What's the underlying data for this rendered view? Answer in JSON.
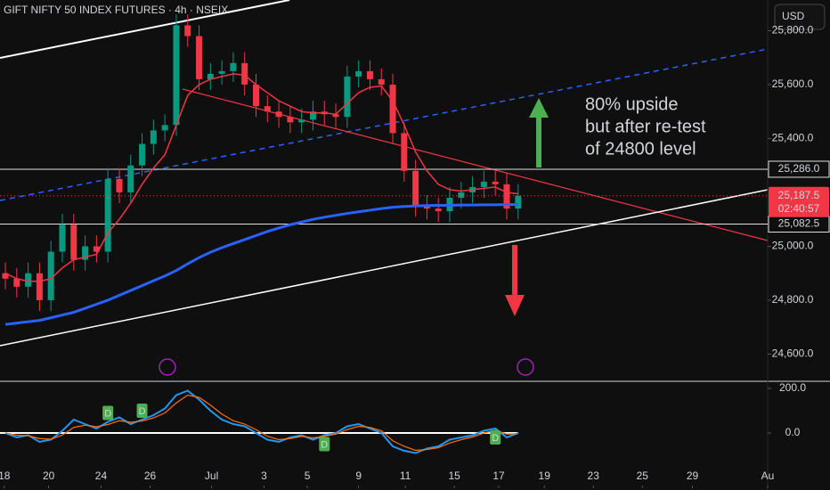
{
  "chart_data": {
    "type": "candlestick",
    "title": "GIFT NIFTY 50 INDEX FUTURES · 4h · NSEIX",
    "currency": "USD",
    "open": [
      24900,
      24880,
      24850,
      24900,
      24800,
      24980,
      25080,
      24950,
      25000,
      24980,
      25250,
      25200,
      25300,
      25380,
      25430,
      25450,
      25820,
      25780,
      25620,
      25640,
      25650,
      25680,
      25600,
      25520,
      25500,
      25480,
      25460,
      25470,
      25500,
      25490,
      25480,
      25630,
      25650,
      25620,
      25600,
      25420,
      25280,
      25150,
      25140,
      25130,
      25180,
      25200,
      25220,
      25240,
      25230,
      25140
    ],
    "high": [
      24940,
      24920,
      24940,
      24940,
      25020,
      25120,
      25120,
      25040,
      25040,
      25290,
      25290,
      25340,
      25420,
      25470,
      25490,
      25860,
      25860,
      25820,
      25680,
      25690,
      25720,
      25720,
      25640,
      25560,
      25540,
      25520,
      25510,
      25540,
      25540,
      25530,
      25670,
      25690,
      25690,
      25660,
      25640,
      25460,
      25320,
      25190,
      25180,
      25220,
      25240,
      25260,
      25280,
      25280,
      25270,
      25230
    ],
    "low": [
      24840,
      24810,
      24810,
      24760,
      24760,
      24940,
      24910,
      24910,
      24940,
      24940,
      25160,
      25160,
      25260,
      25340,
      25390,
      25410,
      25740,
      25580,
      25580,
      25600,
      25610,
      25560,
      25480,
      25460,
      25440,
      25420,
      25420,
      25430,
      25450,
      25440,
      25440,
      25590,
      25580,
      25560,
      25380,
      25240,
      25110,
      25100,
      25090,
      25090,
      25140,
      25160,
      25180,
      25190,
      25100,
      25100
    ],
    "close": [
      24880,
      24850,
      24900,
      24800,
      24980,
      25080,
      24950,
      25000,
      24980,
      25250,
      25200,
      25300,
      25380,
      25430,
      25450,
      25820,
      25780,
      25620,
      25640,
      25650,
      25680,
      25600,
      25520,
      25500,
      25480,
      25460,
      25470,
      25500,
      25490,
      25480,
      25630,
      25650,
      25620,
      25600,
      25420,
      25280,
      25150,
      25140,
      25130,
      25180,
      25200,
      25220,
      25240,
      25230,
      25140,
      25187.5
    ],
    "up_color": "#089981",
    "down_color": "#f23645",
    "series": [
      {
        "color": "#f23645",
        "values": [
          24900,
          24880,
          24870,
          24870,
          24880,
          24920,
          24950,
          24960,
          24970,
          25050,
          25100,
          25160,
          25230,
          25290,
          25340,
          25450,
          25560,
          25600,
          25620,
          25630,
          25640,
          25635,
          25600,
          25570,
          25540,
          25520,
          25500,
          25495,
          25495,
          25490,
          25530,
          25570,
          25590,
          25595,
          25540,
          25450,
          25350,
          25280,
          25230,
          25210,
          25205,
          25210,
          25215,
          25220,
          25200,
          25195
        ]
      },
      {
        "color": "#2962ff",
        "values": [
          24710,
          24715,
          24720,
          24725,
          24735,
          24745,
          24755,
          24770,
          24785,
          24800,
          24818,
          24836,
          24854,
          24872,
          24890,
          24910,
          24935,
          24958,
          24978,
          24995,
          25010,
          25025,
          25040,
          25055,
          25068,
          25080,
          25090,
          25100,
          25108,
          25115,
          25122,
          25128,
          25134,
          25140,
          25145,
          25148,
          25150,
          25151,
          25152,
          25152,
          25153,
          25153,
          25154,
          25154,
          25155,
          25155
        ]
      }
    ],
    "xlim": [
      -0.47,
      66.9
    ],
    "xticks": [
      {
        "value": -0.1,
        "label": "18"
      },
      {
        "value": 3.8,
        "label": "20"
      },
      {
        "value": 8.4,
        "label": "24"
      },
      {
        "value": 12.7,
        "label": "26"
      },
      {
        "value": 18.1,
        "label": "Jul"
      },
      {
        "value": 22.7,
        "label": "3"
      },
      {
        "value": 26.5,
        "label": "5"
      },
      {
        "value": 31,
        "label": "9"
      },
      {
        "value": 35.1,
        "label": "11"
      },
      {
        "value": 39.4,
        "label": "15"
      },
      {
        "value": 43.3,
        "label": "17"
      },
      {
        "value": 47.3,
        "label": "19"
      },
      {
        "value": 51.6,
        "label": "23"
      },
      {
        "value": 55.9,
        "label": "25"
      },
      {
        "value": 60.3,
        "label": "29"
      },
      {
        "value": 66.9,
        "label": "Au"
      }
    ],
    "ylim": [
      24499,
      25914
    ],
    "yticks": [
      {
        "value": 24600,
        "label": "24,600.0"
      },
      {
        "value": 24800,
        "label": "24,800.0"
      },
      {
        "value": 25000,
        "label": "25,000.0"
      },
      {
        "value": 25400,
        "label": "25,400.0"
      },
      {
        "value": 25600,
        "label": "25,600.0"
      },
      {
        "value": 25800,
        "label": "25,800.0"
      }
    ],
    "levels": [
      {
        "value": 25286,
        "label": "25,286.0"
      },
      {
        "value": 25082.5,
        "label": "25,082.5"
      }
    ],
    "last_price": {
      "value": 25187.5,
      "label": "25,187.5"
    },
    "countdown": "02:40:57",
    "annotation": [
      "80% upside",
      "but after re-test",
      "of 24800 level"
    ],
    "oscillator": {
      "ylim": [
        -156,
        224
      ],
      "yticks": [
        {
          "value": 0,
          "label": "0.0"
        },
        {
          "value": 200,
          "label": "200.0"
        }
      ],
      "series": [
        {
          "color": "#2196f3",
          "values": [
            0,
            -20,
            -10,
            -40,
            -30,
            10,
            60,
            40,
            20,
            50,
            70,
            40,
            60,
            80,
            110,
            170,
            190,
            150,
            100,
            60,
            40,
            30,
            0,
            -30,
            -40,
            -20,
            -10,
            -30,
            -10,
            0,
            30,
            40,
            20,
            0,
            -60,
            -80,
            -90,
            -70,
            -60,
            -30,
            -20,
            -10,
            10,
            20,
            -20,
            0
          ]
        },
        {
          "color": "#ff6d00",
          "values": [
            0,
            -10,
            -12,
            -25,
            -28,
            -10,
            25,
            35,
            28,
            38,
            55,
            48,
            54,
            68,
            90,
            135,
            170,
            160,
            125,
            85,
            55,
            40,
            15,
            -15,
            -30,
            -25,
            -15,
            -22,
            -15,
            -5,
            15,
            30,
            25,
            10,
            -35,
            -60,
            -78,
            -74,
            -66,
            -45,
            -30,
            -18,
            0,
            12,
            -5,
            -3
          ]
        }
      ],
      "markers": [
        {
          "index": 9,
          "label": "D"
        },
        {
          "index": 12,
          "label": "D"
        },
        {
          "index": 28,
          "label": "D"
        },
        {
          "index": 43,
          "label": "D"
        }
      ]
    }
  }
}
